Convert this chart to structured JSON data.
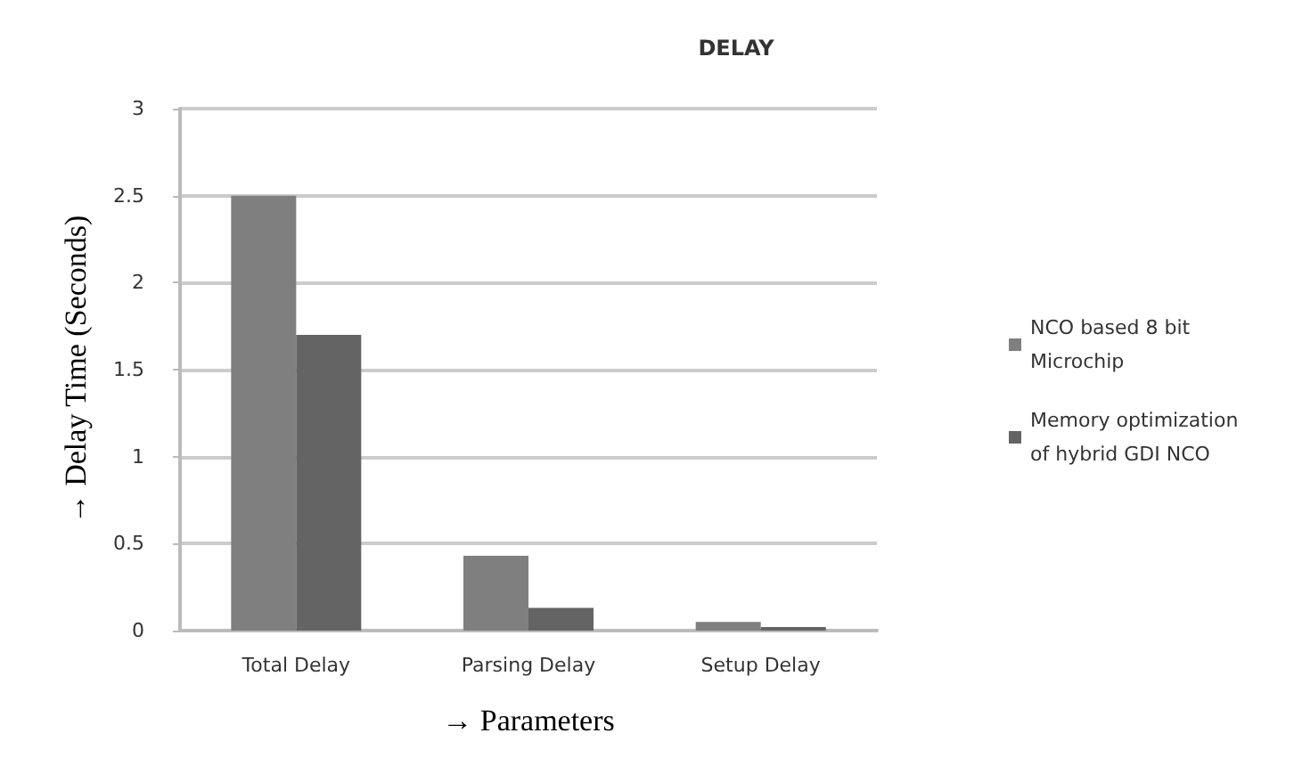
{
  "chart_data": {
    "type": "bar",
    "title": "DELAY",
    "xlabel": "→ Parameters",
    "ylabel": "→ Delay Time (Seconds)",
    "categories": [
      "Total Delay",
      "Parsing Delay",
      "Setup Delay"
    ],
    "series": [
      {
        "name": "NCO based 8 bit Microchip",
        "color": "#7f7f7f",
        "values": [
          2.5,
          0.43,
          0.05
        ]
      },
      {
        "name": "Memory optimization of hybrid GDI NCO",
        "color": "#646464",
        "values": [
          1.7,
          0.13,
          0.02
        ]
      }
    ],
    "ylim": [
      0,
      3
    ],
    "yticks": [
      0,
      0.5,
      1,
      1.5,
      2,
      2.5,
      3
    ],
    "grid": "y",
    "legend": "right"
  }
}
